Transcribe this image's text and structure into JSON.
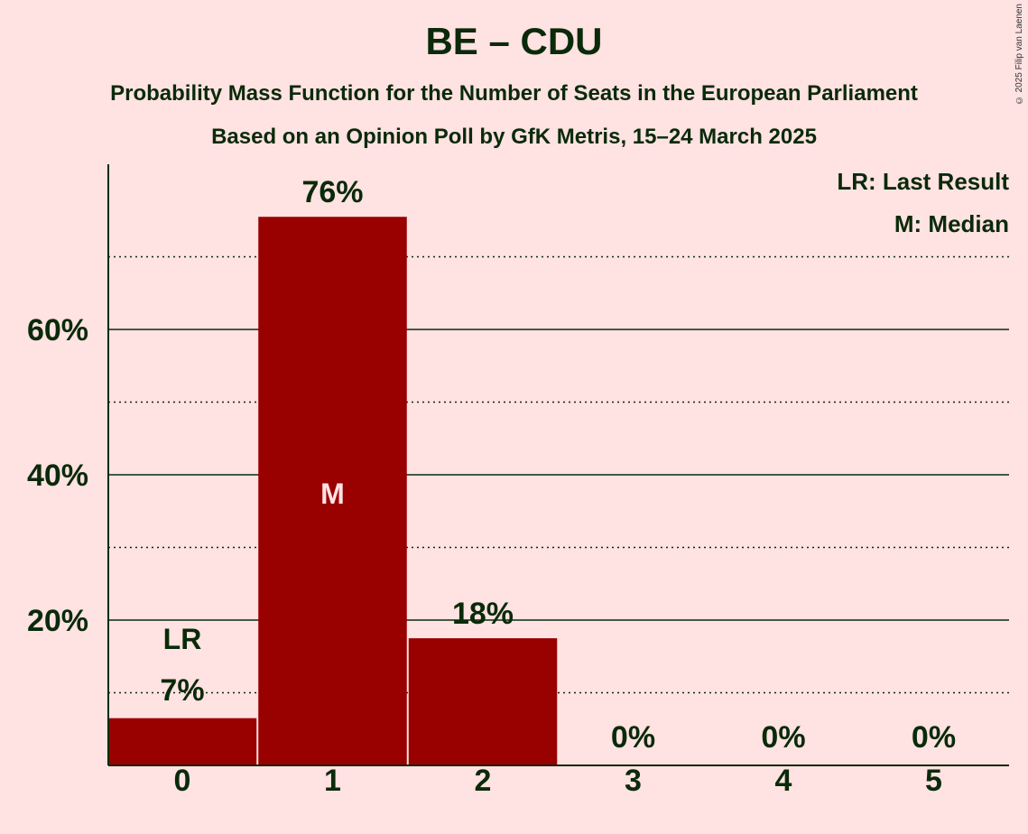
{
  "title": "BE – CDU",
  "subtitle1": "Probability Mass Function for the Number of Seats in the European Parliament",
  "subtitle2": "Based on an Opinion Poll by GfK Metris, 15–24 March 2025",
  "credit": "© 2025 Filip van Laenen",
  "legend": {
    "lr": "LR: Last Result",
    "m": "M: Median"
  },
  "colors": {
    "background": "#ffe2e2",
    "bar": "#990000",
    "text": "#0a2a0a"
  },
  "chart_data": {
    "type": "bar",
    "categories": [
      "0",
      "1",
      "2",
      "3",
      "4",
      "5"
    ],
    "values": [
      6.5,
      75.5,
      17.5,
      0.1,
      0.05,
      0.02
    ],
    "value_labels": [
      "7%",
      "76%",
      "18%",
      "0%",
      "0%",
      "0%"
    ],
    "yticks": [
      20,
      40,
      60
    ],
    "ytick_labels": [
      "20%",
      "40%",
      "60%"
    ],
    "minor_gridlines": [
      10,
      30,
      50,
      70
    ],
    "ylim": [
      0,
      82
    ],
    "last_result_index": 0,
    "last_result_label": "LR",
    "median_index": 1,
    "median_label": "M",
    "legend_position": "top-right",
    "grid": true
  }
}
